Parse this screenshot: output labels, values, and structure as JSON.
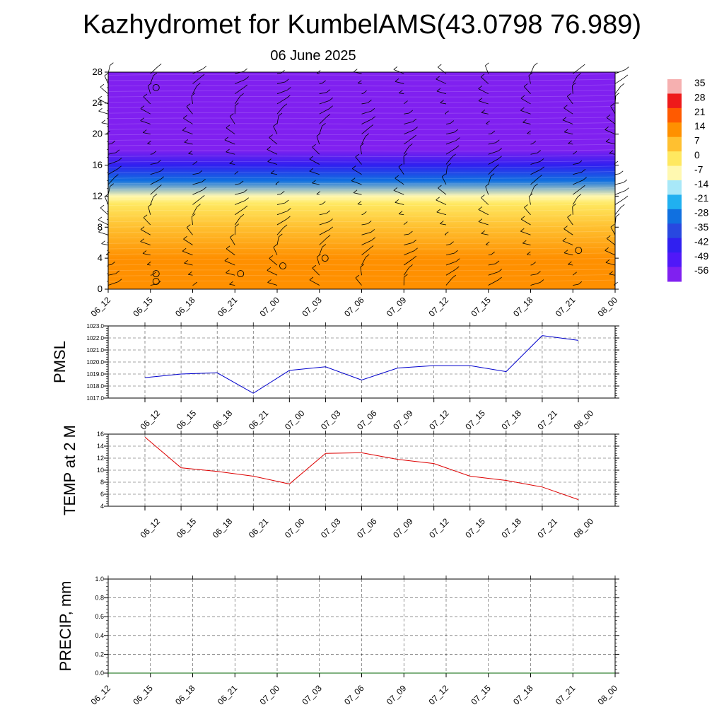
{
  "header": {
    "title": "Kazhydromet for KumbelAMS(43.0798 76.989)",
    "subtitle": "06 June 2025"
  },
  "colors": {
    "pmsl_line": "#0000cc",
    "temp_line": "#dd0000",
    "precip_line": "#006600",
    "grid": "#000000"
  },
  "time_labels": [
    "06_12",
    "06_15",
    "06_18",
    "06_21",
    "07_00",
    "07_03",
    "07_06",
    "07_09",
    "07_12",
    "07_15",
    "07_18",
    "07_21",
    "08_00"
  ],
  "chart_data": [
    {
      "type": "heatmap",
      "title": "Kazhydromet for KumbelAMS(43.0798 76.989)",
      "subtitle": "06 June 2025",
      "x": [
        "06_12",
        "06_15",
        "06_18",
        "06_21",
        "07_00",
        "07_03",
        "07_06",
        "07_09",
        "07_12",
        "07_15",
        "07_18",
        "07_21",
        "08_00"
      ],
      "ylim": [
        0,
        28
      ],
      "y_ticks": [
        0,
        4,
        8,
        12,
        16,
        20,
        24,
        28
      ],
      "colorbar": {
        "labels": [
          "35",
          "28",
          "21",
          "14",
          "7",
          "0",
          "-7",
          "-14",
          "-21",
          "-28",
          "-35",
          "-42",
          "-49",
          "-56"
        ],
        "colors": [
          "#f6b0b0",
          "#ee1a1a",
          "#ff5a00",
          "#ff9000",
          "#ffc030",
          "#ffe860",
          "#fff8b0",
          "#a8e8f8",
          "#20b0f0",
          "#1070e0",
          "#2848e0",
          "#3020f0",
          "#5018f8",
          "#8020f0"
        ]
      },
      "temperature_profile": [
        {
          "height": 0,
          "value": 16
        },
        {
          "height": 4,
          "value": 12
        },
        {
          "height": 8,
          "value": 6
        },
        {
          "height": 11,
          "value": 0
        },
        {
          "height": 12,
          "value": -10
        },
        {
          "height": 14,
          "value": -25
        },
        {
          "height": 16,
          "value": -42
        },
        {
          "height": 18,
          "value": -58
        },
        {
          "height": 20,
          "value": -58
        },
        {
          "height": 22,
          "value": -55
        },
        {
          "height": 28,
          "value": -60
        }
      ],
      "calm_markers": [
        {
          "time": "06_15",
          "height": 26
        },
        {
          "time": "06_15",
          "height": 2
        },
        {
          "time": "06_15",
          "height": 1
        },
        {
          "time": "06_21",
          "height": 2
        },
        {
          "time": "07_00",
          "height": 3
        },
        {
          "time": "07_03",
          "height": 4
        },
        {
          "time": "07_21",
          "height": 5
        }
      ]
    },
    {
      "type": "line",
      "ylabel": "PMSL",
      "x": [
        "06_12",
        "06_15",
        "06_18",
        "06_21",
        "07_00",
        "07_03",
        "07_06",
        "07_09",
        "07_12",
        "07_15",
        "07_18",
        "07_21",
        "08_00"
      ],
      "ylim": [
        1017.0,
        1023.0
      ],
      "y_ticks": [
        "1017.0",
        "1018.0",
        "1019.0",
        "1020.0",
        "1021.0",
        "1022.0",
        "1023.0"
      ],
      "series": [
        {
          "values": [
            1018.7,
            1019.0,
            1019.1,
            1017.4,
            1019.3,
            1019.6,
            1018.5,
            1019.5,
            1019.7,
            1019.7,
            1019.2,
            1022.2,
            1021.8
          ]
        }
      ]
    },
    {
      "type": "line",
      "ylabel": "TEMP at 2 M",
      "x": [
        "06_12",
        "06_15",
        "06_18",
        "06_21",
        "07_00",
        "07_03",
        "07_06",
        "07_09",
        "07_12",
        "07_15",
        "07_18",
        "07_21",
        "08_00"
      ],
      "ylim": [
        4,
        16
      ],
      "y_ticks": [
        "4",
        "6",
        "8",
        "10",
        "12",
        "14",
        "16"
      ],
      "series": [
        {
          "values": [
            15.5,
            10.4,
            9.8,
            9.0,
            7.7,
            12.8,
            12.9,
            11.8,
            11.1,
            9.0,
            8.3,
            7.2,
            5.1
          ]
        }
      ]
    },
    {
      "type": "line",
      "ylabel": "PRECIP, mm",
      "x": [
        "06_12",
        "06_15",
        "06_18",
        "06_21",
        "07_00",
        "07_03",
        "07_06",
        "07_09",
        "07_12",
        "07_15",
        "07_18",
        "07_21",
        "08_00"
      ],
      "ylim": [
        0.0,
        1.0
      ],
      "y_ticks": [
        "0.0",
        "0.2",
        "0.4",
        "0.6",
        "0.8",
        "1.0"
      ],
      "series": [
        {
          "values": [
            0,
            0,
            0,
            0,
            0,
            0,
            0,
            0,
            0,
            0,
            0,
            0,
            0
          ]
        }
      ]
    }
  ]
}
